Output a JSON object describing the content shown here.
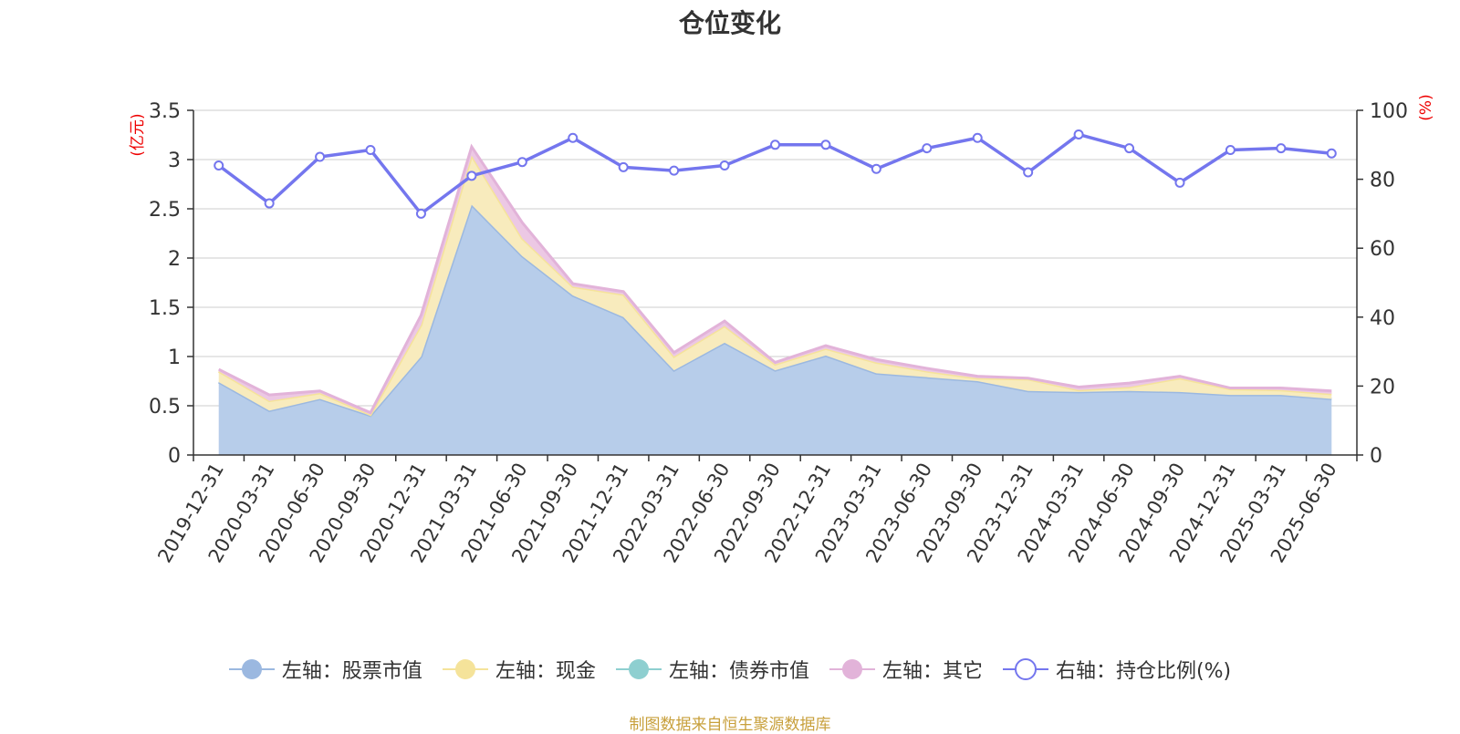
{
  "chart_data": {
    "type": "area",
    "title": "仓位变化",
    "source_note": "制图数据来自恒生聚源数据库",
    "left_axis": {
      "unit_label": "(亿元)",
      "ylim": [
        0,
        3.5
      ],
      "ticks": [
        0,
        0.5,
        1,
        1.5,
        2,
        2.5,
        3,
        3.5
      ],
      "tick_labels": [
        "0",
        "0.5",
        "1",
        "1.5",
        "2",
        "2.5",
        "3",
        "3.5"
      ]
    },
    "right_axis": {
      "unit_label": "(%)",
      "ylim": [
        0,
        100
      ],
      "ticks": [
        0,
        20,
        40,
        60,
        80,
        100
      ],
      "tick_labels": [
        "0",
        "20",
        "40",
        "60",
        "80",
        "100"
      ]
    },
    "grid": true,
    "legend_position": "bottom",
    "categories": [
      "2019-12-31",
      "2020-03-31",
      "2020-06-30",
      "2020-09-30",
      "2020-12-31",
      "2021-03-31",
      "2021-06-30",
      "2021-09-30",
      "2021-12-31",
      "2022-03-31",
      "2022-06-30",
      "2022-09-30",
      "2022-12-31",
      "2023-03-31",
      "2023-06-30",
      "2023-09-30",
      "2023-12-31",
      "2024-03-31",
      "2024-06-30",
      "2024-09-30",
      "2024-12-31",
      "2025-03-31",
      "2025-06-30"
    ],
    "series": [
      {
        "name": "左轴：股票市值",
        "axis": "left",
        "kind": "stacked-area",
        "color": "#9bb8e0",
        "fill": "#b7cdea",
        "values": [
          0.74,
          0.45,
          0.57,
          0.4,
          1.0,
          2.54,
          2.02,
          1.62,
          1.4,
          0.86,
          1.14,
          0.86,
          1.01,
          0.83,
          0.79,
          0.75,
          0.65,
          0.64,
          0.65,
          0.64,
          0.61,
          0.61,
          0.57
        ]
      },
      {
        "name": "左轴：现金",
        "axis": "left",
        "kind": "stacked-area",
        "color": "#f5e39a",
        "fill": "#f8ebbd",
        "values": [
          0.11,
          0.1,
          0.06,
          0.01,
          0.32,
          0.5,
          0.18,
          0.09,
          0.23,
          0.14,
          0.17,
          0.06,
          0.07,
          0.11,
          0.06,
          0.03,
          0.12,
          0.02,
          0.04,
          0.14,
          0.06,
          0.05,
          0.05
        ]
      },
      {
        "name": "左轴：债券市值",
        "axis": "left",
        "kind": "stacked-area",
        "color": "#8ecfd0",
        "fill": "#a9dcdc",
        "values": [
          0,
          0,
          0,
          0,
          0,
          0,
          0,
          0,
          0,
          0,
          0,
          0,
          0,
          0,
          0,
          0,
          0,
          0,
          0,
          0,
          0,
          0,
          0
        ]
      },
      {
        "name": "左轴：其它",
        "axis": "left",
        "kind": "stacked-area",
        "color": "#e2b3d9",
        "fill": "#ecc8e4",
        "values": [
          0.02,
          0.06,
          0.02,
          0.02,
          0.1,
          0.09,
          0.16,
          0.03,
          0.03,
          0.04,
          0.05,
          0.02,
          0.03,
          0.03,
          0.03,
          0.02,
          0.01,
          0.03,
          0.04,
          0.02,
          0.01,
          0.02,
          0.03
        ]
      },
      {
        "name": "右轴：持仓比例(%)",
        "axis": "right",
        "kind": "line",
        "color": "#7476ee",
        "values": [
          84,
          73,
          86.5,
          88.5,
          70,
          81,
          85,
          92,
          83.5,
          82.5,
          84,
          90,
          90,
          83,
          89,
          92,
          82,
          93,
          89,
          79,
          88.5,
          89,
          87.5
        ]
      }
    ]
  }
}
